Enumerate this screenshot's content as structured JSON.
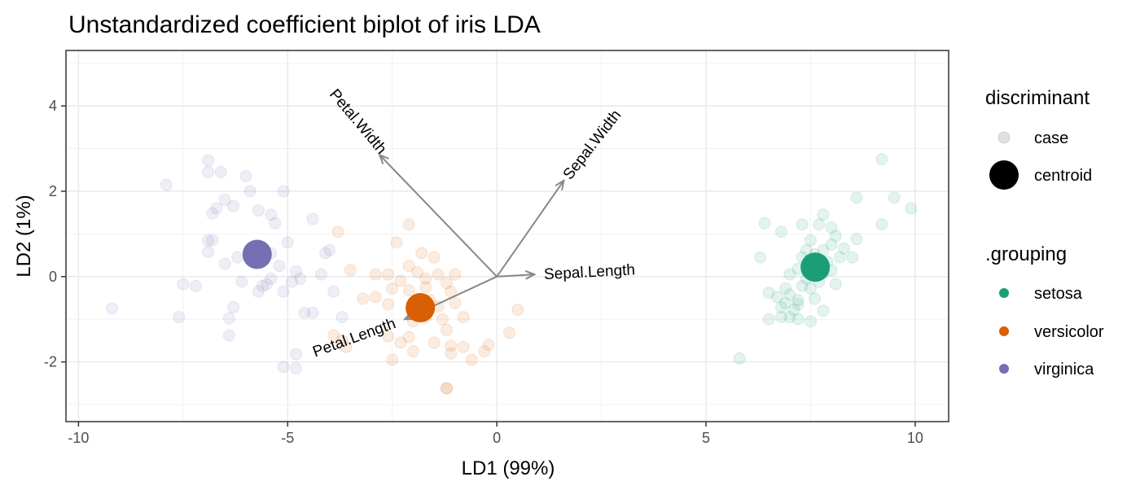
{
  "chart_data": {
    "type": "scatter",
    "title": "Unstandardized coefficient biplot of iris LDA",
    "xlabel": "LD1 (99%)",
    "ylabel": "LD2 (1%)",
    "xlim": [
      -10.3,
      10.8
    ],
    "ylim": [
      -3.4,
      5.3
    ],
    "x_ticks": [
      -10,
      -5,
      0,
      5,
      10
    ],
    "x_tick_labels": [
      "-10",
      "-5",
      "0",
      "5",
      "10"
    ],
    "y_ticks": [
      -2,
      0,
      2,
      4
    ],
    "y_tick_labels": [
      "-2",
      "0",
      "2",
      "4"
    ],
    "grid": true,
    "legend_position": "right",
    "legend": {
      "discriminant_title": "discriminant",
      "discriminant_items": [
        "case",
        "centroid"
      ],
      "grouping_title": ".grouping",
      "grouping_items": [
        "setosa",
        "versicolor",
        "virginica"
      ]
    },
    "colors": {
      "setosa": "#1b9e77",
      "versicolor": "#d95f02",
      "virginica": "#7570b3",
      "arrow": "#888888"
    },
    "series": [
      {
        "name": "setosa",
        "centroid": [
          7.61,
          0.22
        ],
        "cases": [
          [
            6.3,
            0.45
          ],
          [
            6.5,
            -0.38
          ],
          [
            6.7,
            -0.48
          ],
          [
            6.8,
            -0.72
          ],
          [
            6.9,
            -0.62
          ],
          [
            7.0,
            -0.42
          ],
          [
            7.1,
            -0.78
          ],
          [
            7.3,
            -0.22
          ],
          [
            7.4,
            -0.05
          ],
          [
            7.5,
            -0.28
          ],
          [
            7.6,
            -0.52
          ],
          [
            7.7,
            -0.12
          ],
          [
            7.8,
            0.08
          ],
          [
            7.9,
            0.35
          ],
          [
            8.0,
            0.15
          ],
          [
            8.1,
            -0.18
          ],
          [
            7.2,
            0.18
          ],
          [
            7.3,
            0.45
          ],
          [
            7.4,
            0.62
          ],
          [
            7.6,
            0.52
          ],
          [
            7.8,
            0.62
          ],
          [
            8.0,
            0.75
          ],
          [
            8.1,
            0.95
          ],
          [
            8.2,
            0.45
          ],
          [
            8.3,
            0.66
          ],
          [
            8.5,
            0.45
          ],
          [
            8.6,
            0.88
          ],
          [
            7.0,
            0.05
          ],
          [
            6.9,
            -0.28
          ],
          [
            7.2,
            -0.55
          ],
          [
            7.5,
            0.85
          ],
          [
            7.7,
            1.22
          ],
          [
            7.8,
            1.45
          ],
          [
            8.0,
            1.15
          ],
          [
            6.4,
            1.25
          ],
          [
            6.8,
            1.05
          ],
          [
            7.3,
            1.22
          ],
          [
            8.6,
            1.85
          ],
          [
            9.2,
            1.22
          ],
          [
            9.5,
            1.85
          ],
          [
            9.9,
            1.6
          ],
          [
            9.2,
            2.75
          ],
          [
            7.0,
            -0.95
          ],
          [
            7.2,
            -1.0
          ],
          [
            7.5,
            -1.05
          ],
          [
            7.8,
            -0.8
          ],
          [
            6.5,
            -1.0
          ],
          [
            6.8,
            -0.95
          ],
          [
            5.8,
            -1.92
          ],
          [
            7.2,
            -0.65
          ]
        ]
      },
      {
        "name": "versicolor",
        "centroid": [
          -1.83,
          -0.73
        ],
        "cases": [
          [
            -3.5,
            0.15
          ],
          [
            -2.9,
            0.05
          ],
          [
            -2.6,
            0.05
          ],
          [
            -2.4,
            0.8
          ],
          [
            -2.1,
            0.25
          ],
          [
            -1.9,
            0.1
          ],
          [
            -1.7,
            -0.05
          ],
          [
            -1.8,
            0.55
          ],
          [
            -1.5,
            0.45
          ],
          [
            -1.4,
            0.05
          ],
          [
            -1.2,
            -0.15
          ],
          [
            -1.0,
            0.05
          ],
          [
            -1.1,
            -0.35
          ],
          [
            -2.3,
            -0.1
          ],
          [
            -2.1,
            -0.32
          ],
          [
            -2.6,
            -0.65
          ],
          [
            -2.9,
            -0.48
          ],
          [
            -1.6,
            -0.55
          ],
          [
            -1.4,
            -0.7
          ],
          [
            -1.3,
            -1.0
          ],
          [
            -1.2,
            -1.25
          ],
          [
            -0.8,
            -0.95
          ],
          [
            -1.0,
            -0.62
          ],
          [
            -2.1,
            -1.42
          ],
          [
            -2.3,
            -1.55
          ],
          [
            -2.0,
            -1.75
          ],
          [
            -2.5,
            -1.95
          ],
          [
            -1.5,
            -1.55
          ],
          [
            -1.1,
            -1.62
          ],
          [
            -1.1,
            -1.8
          ],
          [
            -0.8,
            -1.65
          ],
          [
            -0.6,
            -1.95
          ],
          [
            -0.3,
            -1.75
          ],
          [
            -0.2,
            -1.6
          ],
          [
            0.3,
            -1.32
          ],
          [
            0.5,
            -0.78
          ],
          [
            -3.2,
            -0.52
          ],
          [
            -3.7,
            -1.5
          ],
          [
            -3.6,
            -1.65
          ],
          [
            -3.9,
            -1.38
          ],
          [
            -3.8,
            1.05
          ],
          [
            -2.1,
            1.22
          ],
          [
            -2.5,
            -0.28
          ],
          [
            -2.0,
            -1.05
          ],
          [
            -1.7,
            -0.25
          ],
          [
            -1.9,
            -0.62
          ],
          [
            -1.2,
            -2.62
          ],
          [
            -1.2,
            -2.62
          ],
          [
            -2.6,
            -1.4
          ],
          [
            -1.7,
            -0.95
          ]
        ]
      },
      {
        "name": "virginica",
        "centroid": [
          -5.73,
          0.52
        ],
        "cases": [
          [
            -9.2,
            -0.75
          ],
          [
            -7.9,
            2.15
          ],
          [
            -7.6,
            -0.95
          ],
          [
            -7.5,
            -0.18
          ],
          [
            -6.9,
            2.72
          ],
          [
            -6.9,
            2.45
          ],
          [
            -6.6,
            2.45
          ],
          [
            -6.5,
            1.8
          ],
          [
            -6.7,
            1.6
          ],
          [
            -6.8,
            1.48
          ],
          [
            -6.3,
            1.65
          ],
          [
            -6.0,
            2.35
          ],
          [
            -5.9,
            2.0
          ],
          [
            -5.7,
            1.55
          ],
          [
            -5.4,
            1.45
          ],
          [
            -5.3,
            1.25
          ],
          [
            -5.1,
            2.0
          ],
          [
            -5.0,
            0.8
          ],
          [
            -5.4,
            0.55
          ],
          [
            -4.8,
            0.12
          ],
          [
            -4.4,
            1.35
          ],
          [
            -4.1,
            0.55
          ],
          [
            -4.0,
            0.62
          ],
          [
            -3.9,
            -0.35
          ],
          [
            -4.2,
            0.05
          ],
          [
            -4.7,
            -0.05
          ],
          [
            -4.9,
            -0.12
          ],
          [
            -5.4,
            -0.05
          ],
          [
            -5.5,
            -0.18
          ],
          [
            -5.7,
            -0.35
          ],
          [
            -6.1,
            -0.12
          ],
          [
            -6.3,
            -0.72
          ],
          [
            -6.4,
            -0.98
          ],
          [
            -6.4,
            -1.38
          ],
          [
            -6.9,
            0.85
          ],
          [
            -6.9,
            0.58
          ],
          [
            -6.5,
            0.3
          ],
          [
            -6.2,
            0.45
          ],
          [
            -5.8,
            0.65
          ],
          [
            -5.6,
            -0.22
          ],
          [
            -5.1,
            -0.35
          ],
          [
            -4.6,
            -0.85
          ],
          [
            -4.4,
            -0.85
          ],
          [
            -3.7,
            -0.95
          ],
          [
            -4.8,
            -1.82
          ],
          [
            -5.1,
            -2.12
          ],
          [
            -4.8,
            -2.15
          ],
          [
            -7.2,
            -0.22
          ],
          [
            -6.8,
            0.85
          ],
          [
            -5.2,
            0.25
          ]
        ]
      }
    ],
    "arrows": [
      {
        "name": "Petal.Width",
        "tip": [
          -2.8,
          2.85
        ]
      },
      {
        "name": "Sepal.Width",
        "tip": [
          1.6,
          2.25
        ]
      },
      {
        "name": "Sepal.Length",
        "tip": [
          0.9,
          0.05
        ]
      },
      {
        "name": "Petal.Length",
        "tip": [
          -2.2,
          -1.0
        ]
      }
    ]
  }
}
